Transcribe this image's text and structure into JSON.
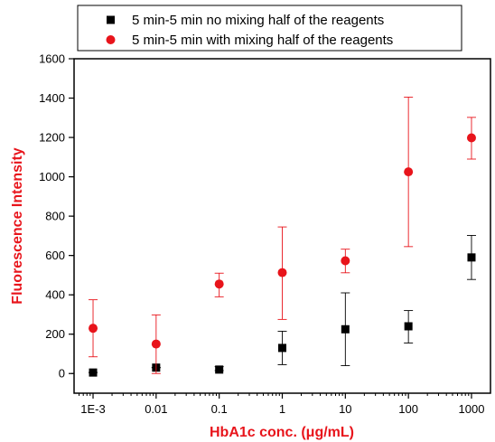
{
  "chart_data": {
    "type": "scatter",
    "xlabel": "HbA1c conc. (μg/mL)",
    "ylabel": "Fluorescence Intensity",
    "x_scale": "log",
    "xlim": [
      0.0005,
      2000
    ],
    "ylim": [
      -100,
      1600
    ],
    "x_ticks": [
      0.001,
      0.01,
      0.1,
      1,
      10,
      100,
      1000
    ],
    "x_tick_labels": [
      "1E-3",
      "0.01",
      "0.1",
      "1",
      "10",
      "100",
      "1000"
    ],
    "y_ticks": [
      0,
      200,
      400,
      600,
      800,
      1000,
      1200,
      1400,
      1600
    ],
    "y_tick_labels": [
      "0",
      "200",
      "400",
      "600",
      "800",
      "1000",
      "1200",
      "1400",
      "1600"
    ],
    "legend_position": "top",
    "series": [
      {
        "name": "5 min-5 min no mixing half of the reagents",
        "marker": "square",
        "color": "#000000",
        "x": [
          0.001,
          0.01,
          0.1,
          1,
          10,
          100,
          1000
        ],
        "y": [
          5,
          30,
          20,
          130,
          225,
          240,
          590
        ],
        "err_low": [
          5,
          30,
          15,
          45,
          40,
          155,
          478
        ],
        "err_high": [
          5,
          30,
          35,
          215,
          410,
          320,
          702
        ]
      },
      {
        "name": "5 min-5 min with mixing half of the reagents",
        "marker": "circle",
        "color": "#e8141b",
        "x": [
          0.001,
          0.01,
          0.1,
          1,
          10,
          100,
          1000
        ],
        "y": [
          230,
          150,
          455,
          513,
          573,
          1025,
          1198
        ],
        "err_low": [
          85,
          0,
          390,
          275,
          512,
          645,
          1090
        ],
        "err_high": [
          375,
          298,
          510,
          745,
          632,
          1405,
          1302
        ]
      }
    ]
  }
}
